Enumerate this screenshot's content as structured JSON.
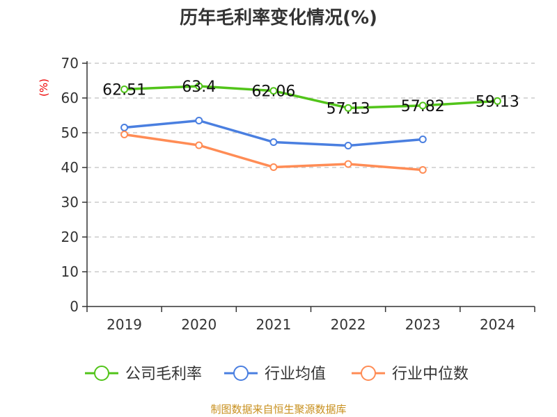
{
  "chart_data": {
    "type": "line",
    "title": "历年毛利率变化情况(%)",
    "ylabel": "(%)",
    "categories": [
      "2019",
      "2020",
      "2021",
      "2022",
      "2023",
      "2024"
    ],
    "ylim": [
      0,
      70
    ],
    "yticks": [
      0,
      10,
      20,
      30,
      40,
      50,
      60,
      70
    ],
    "grid": true,
    "legend_position": "bottom",
    "series": [
      {
        "name": "公司毛利率",
        "color": "#52c41a",
        "values": [
          62.51,
          63.4,
          62.06,
          57.13,
          57.82,
          59.13
        ],
        "labels": [
          "62.51",
          "63.4",
          "62.06",
          "57.13",
          "57.82",
          "59.13"
        ]
      },
      {
        "name": "行业均值",
        "color": "#4a7fe0",
        "values": [
          51.5,
          53.5,
          47.3,
          46.3,
          48.1,
          null
        ]
      },
      {
        "name": "行业中位数",
        "color": "#ff8c55",
        "values": [
          49.5,
          46.4,
          40.1,
          41.0,
          39.3,
          null
        ]
      }
    ]
  },
  "source": "制图数据来自恒生聚源数据库"
}
